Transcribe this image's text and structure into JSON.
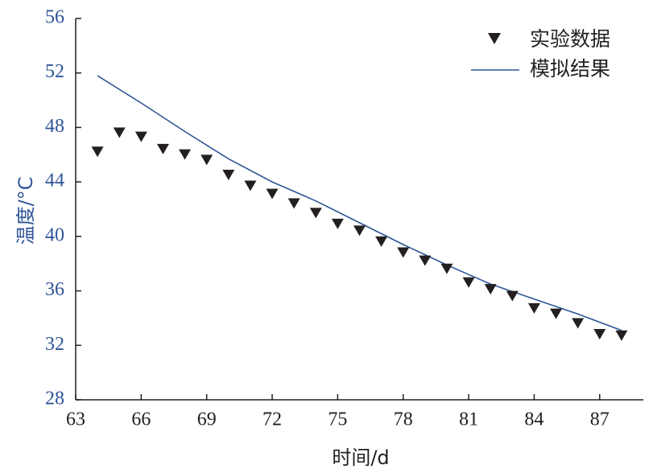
{
  "chart_data": {
    "type": "line",
    "title": "",
    "xlabel": "时间/d",
    "ylabel": "温度/°C",
    "xlim": [
      63,
      89
    ],
    "ylim": [
      28,
      56
    ],
    "xticks": [
      63,
      66,
      69,
      72,
      75,
      78,
      81,
      84,
      87
    ],
    "yticks": [
      28,
      32,
      36,
      40,
      44,
      48,
      52,
      56
    ],
    "grid": false,
    "legend_position": "top-right",
    "series": [
      {
        "name": "实验数据",
        "style": "marker-triangle-down",
        "color": "#231f20",
        "x": [
          64,
          65,
          66,
          67,
          68,
          69,
          70,
          71,
          72,
          73,
          74,
          75,
          76,
          77,
          78,
          79,
          80,
          81,
          82,
          83,
          84,
          85,
          86,
          87,
          88
        ],
        "y": [
          46.3,
          47.7,
          47.4,
          46.5,
          46.1,
          45.7,
          44.6,
          43.8,
          43.2,
          42.5,
          41.8,
          41.0,
          40.5,
          39.7,
          38.9,
          38.3,
          37.7,
          36.7,
          36.2,
          35.7,
          34.8,
          34.4,
          33.7,
          32.9,
          32.8
        ]
      },
      {
        "name": "模拟结果",
        "style": "line",
        "color": "#2f5597",
        "x": [
          64,
          66,
          68,
          70,
          72,
          74,
          76,
          78,
          80,
          81,
          82,
          84,
          86,
          88
        ],
        "y": [
          51.8,
          49.8,
          47.7,
          45.7,
          44.0,
          42.6,
          41.0,
          39.4,
          37.9,
          37.2,
          36.5,
          35.4,
          34.3,
          33.1
        ]
      }
    ]
  },
  "colors": {
    "axis": "#231f20",
    "y_axis_labels": "#2f5597",
    "x_axis_labels": "#231f20"
  }
}
